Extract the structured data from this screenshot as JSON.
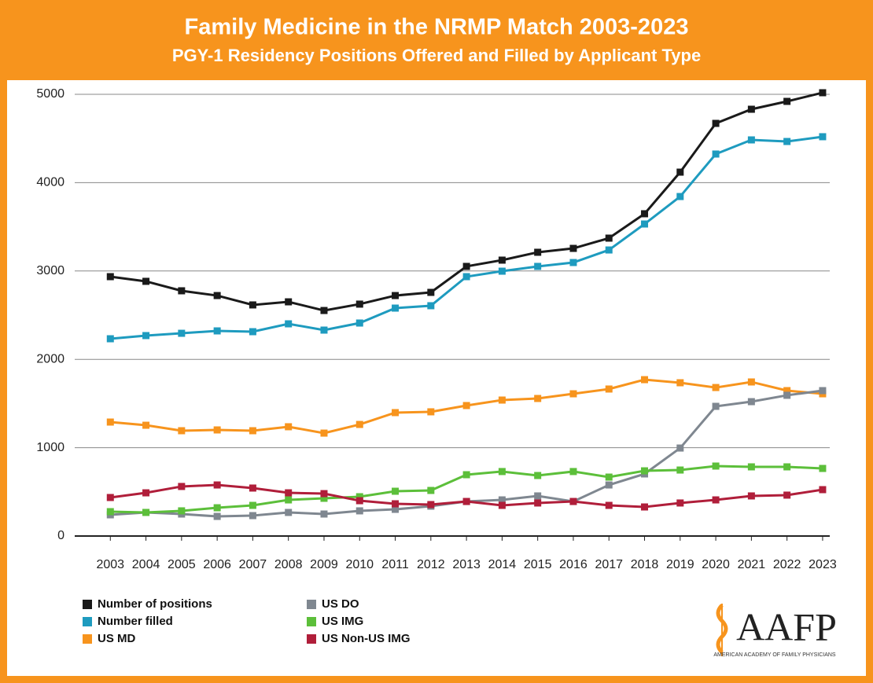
{
  "chart_data": {
    "type": "line",
    "title": "Family Medicine in the NRMP Match 2003-2023",
    "subtitle": "PGY-1 Residency Positions Offered and Filled by Applicant Type",
    "x": [
      2003,
      2004,
      2005,
      2006,
      2007,
      2008,
      2009,
      2010,
      2011,
      2012,
      2013,
      2014,
      2015,
      2016,
      2017,
      2018,
      2019,
      2020,
      2021,
      2022,
      2023
    ],
    "xlim": [
      2002,
      2023.2
    ],
    "ylim": [
      0,
      5000
    ],
    "yticks": [
      0,
      1000,
      2000,
      3000,
      4000,
      5000
    ],
    "grid": true,
    "legend": "bottom",
    "series": [
      {
        "name": "Number of positions",
        "color": "#1a1a1a",
        "values": [
          2936,
          2883,
          2776,
          2722,
          2616,
          2651,
          2553,
          2625,
          2722,
          2758,
          3052,
          3123,
          3212,
          3256,
          3372,
          3648,
          4119,
          4671,
          4831,
          4920,
          5018
        ]
      },
      {
        "name": "Number filled",
        "color": "#1e9bbf",
        "values": [
          2233,
          2269,
          2295,
          2322,
          2313,
          2402,
          2331,
          2411,
          2580,
          2607,
          2936,
          2998,
          3052,
          3096,
          3238,
          3532,
          3843,
          4324,
          4484,
          4466,
          4520
        ]
      },
      {
        "name": "US MD",
        "color": "#f7941d",
        "values": [
          1290,
          1254,
          1192,
          1201,
          1192,
          1237,
          1165,
          1263,
          1397,
          1406,
          1477,
          1539,
          1557,
          1610,
          1664,
          1770,
          1735,
          1681,
          1744,
          1646,
          1610
        ]
      },
      {
        "name": "US DO",
        "color": "#7f8790",
        "values": [
          240,
          267,
          249,
          222,
          231,
          267,
          249,
          285,
          302,
          338,
          391,
          409,
          454,
          391,
          578,
          703,
          996,
          1468,
          1521,
          1593,
          1646
        ]
      },
      {
        "name": "US IMG",
        "color": "#5cbf3a",
        "values": [
          276,
          267,
          285,
          320,
          347,
          409,
          427,
          445,
          507,
          516,
          694,
          730,
          685,
          730,
          667,
          738,
          747,
          792,
          783,
          783,
          765
        ]
      },
      {
        "name": "US Non-US IMG",
        "color": "#b01e3a",
        "values": [
          436,
          489,
          561,
          578,
          543,
          489,
          480,
          400,
          365,
          356,
          391,
          347,
          374,
          391,
          347,
          329,
          374,
          409,
          454,
          463,
          525
        ]
      }
    ]
  },
  "logo": {
    "name": "AAFP",
    "tagline": "AMERICAN ACADEMY OF FAMILY PHYSICIANS"
  }
}
